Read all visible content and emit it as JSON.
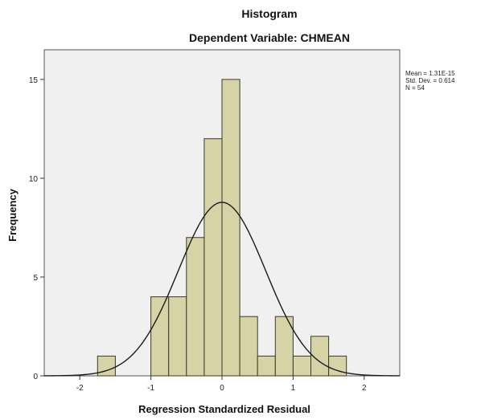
{
  "chart_data": {
    "type": "bar",
    "title": "Histogram",
    "subtitle": "Dependent Variable: CHMEAN",
    "xlabel": "Regression Standardized Residual",
    "ylabel": "Frequency",
    "xlim": [
      -2.5,
      2.5
    ],
    "ylim": [
      0,
      16.5
    ],
    "x_ticks": [
      -2,
      -1,
      0,
      1,
      2
    ],
    "y_ticks": [
      0,
      5,
      10,
      15
    ],
    "bin_width": 0.25,
    "bins": [
      {
        "start": -1.75,
        "count": 1
      },
      {
        "start": -1.0,
        "count": 4
      },
      {
        "start": -0.75,
        "count": 4
      },
      {
        "start": -0.5,
        "count": 7
      },
      {
        "start": -0.25,
        "count": 12
      },
      {
        "start": 0.0,
        "count": 15
      },
      {
        "start": 0.25,
        "count": 3
      },
      {
        "start": 0.5,
        "count": 1
      },
      {
        "start": 0.75,
        "count": 3
      },
      {
        "start": 1.0,
        "count": 1
      },
      {
        "start": 1.25,
        "count": 2
      },
      {
        "start": 1.5,
        "count": 1
      }
    ],
    "normal_curve": {
      "mean": 0,
      "sd": 0.614,
      "n": 54,
      "peak": 8.78
    },
    "stats_lines": [
      "Mean = 1.31E-15",
      "Std. Dev. = 0.614",
      "N = 54"
    ],
    "legend_position": "right",
    "grid": false,
    "colors": {
      "bar_fill": "#d6d3a6",
      "bar_stroke": "#3a3a2a",
      "plot_bg": "#f0f0f0",
      "curve": "#1a1a1a"
    }
  }
}
